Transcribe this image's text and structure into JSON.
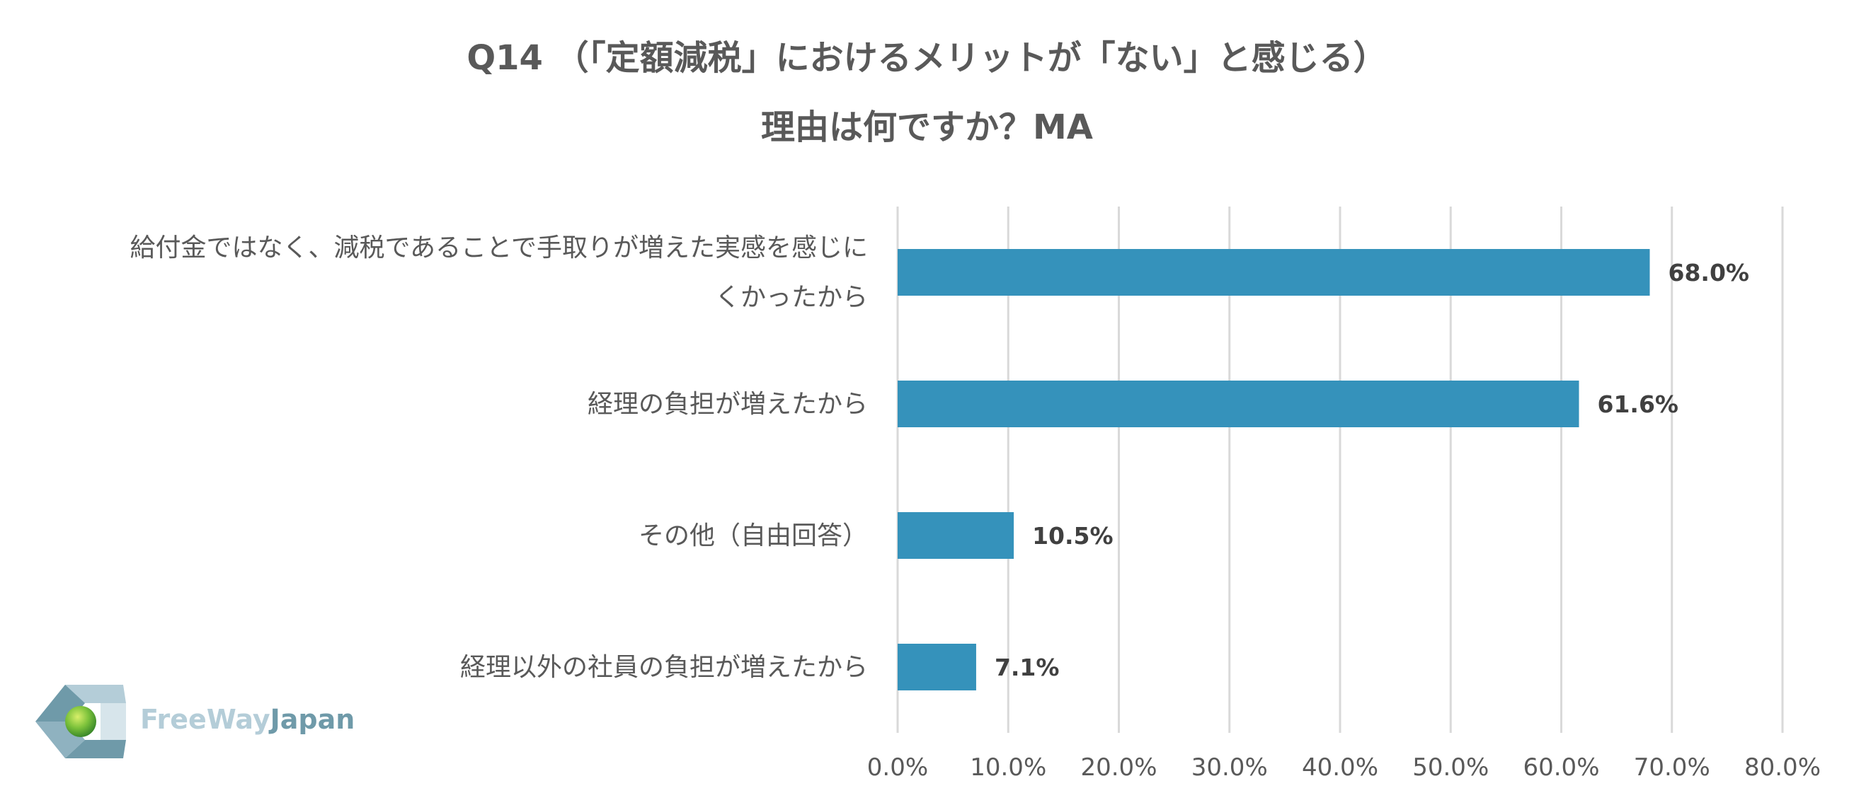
{
  "chart_data": {
    "type": "bar",
    "orientation": "horizontal",
    "title": [
      "Q14 （「定額減税」におけるメリットが「ない」と感じる）",
      "理由は何ですか？MA"
    ],
    "categories": [
      [
        "給付金ではなく、減税であることで手取りが増えた実感を感じに",
        "くかったから"
      ],
      [
        "経理の負担が増えたから"
      ],
      [
        "その他（自由回答）"
      ],
      [
        "経理以外の社員の負担が増えたから"
      ]
    ],
    "values": [
      68.0,
      61.6,
      10.5,
      7.1
    ],
    "value_labels": [
      "68.0%",
      "61.6%",
      "10.5%",
      "7.1%"
    ],
    "xlim": [
      0,
      80
    ],
    "xticks": [
      0,
      10,
      20,
      30,
      40,
      50,
      60,
      70,
      80
    ],
    "xtick_labels": [
      "0.0%",
      "10.0%",
      "20.0%",
      "30.0%",
      "40.0%",
      "50.0%",
      "60.0%",
      "70.0%",
      "80.0%"
    ],
    "grid": "vertical",
    "legend": "none",
    "bar_color": "#3592bb"
  },
  "logo": {
    "text_part1": "FreeWay",
    "text_part2": "Japan"
  }
}
